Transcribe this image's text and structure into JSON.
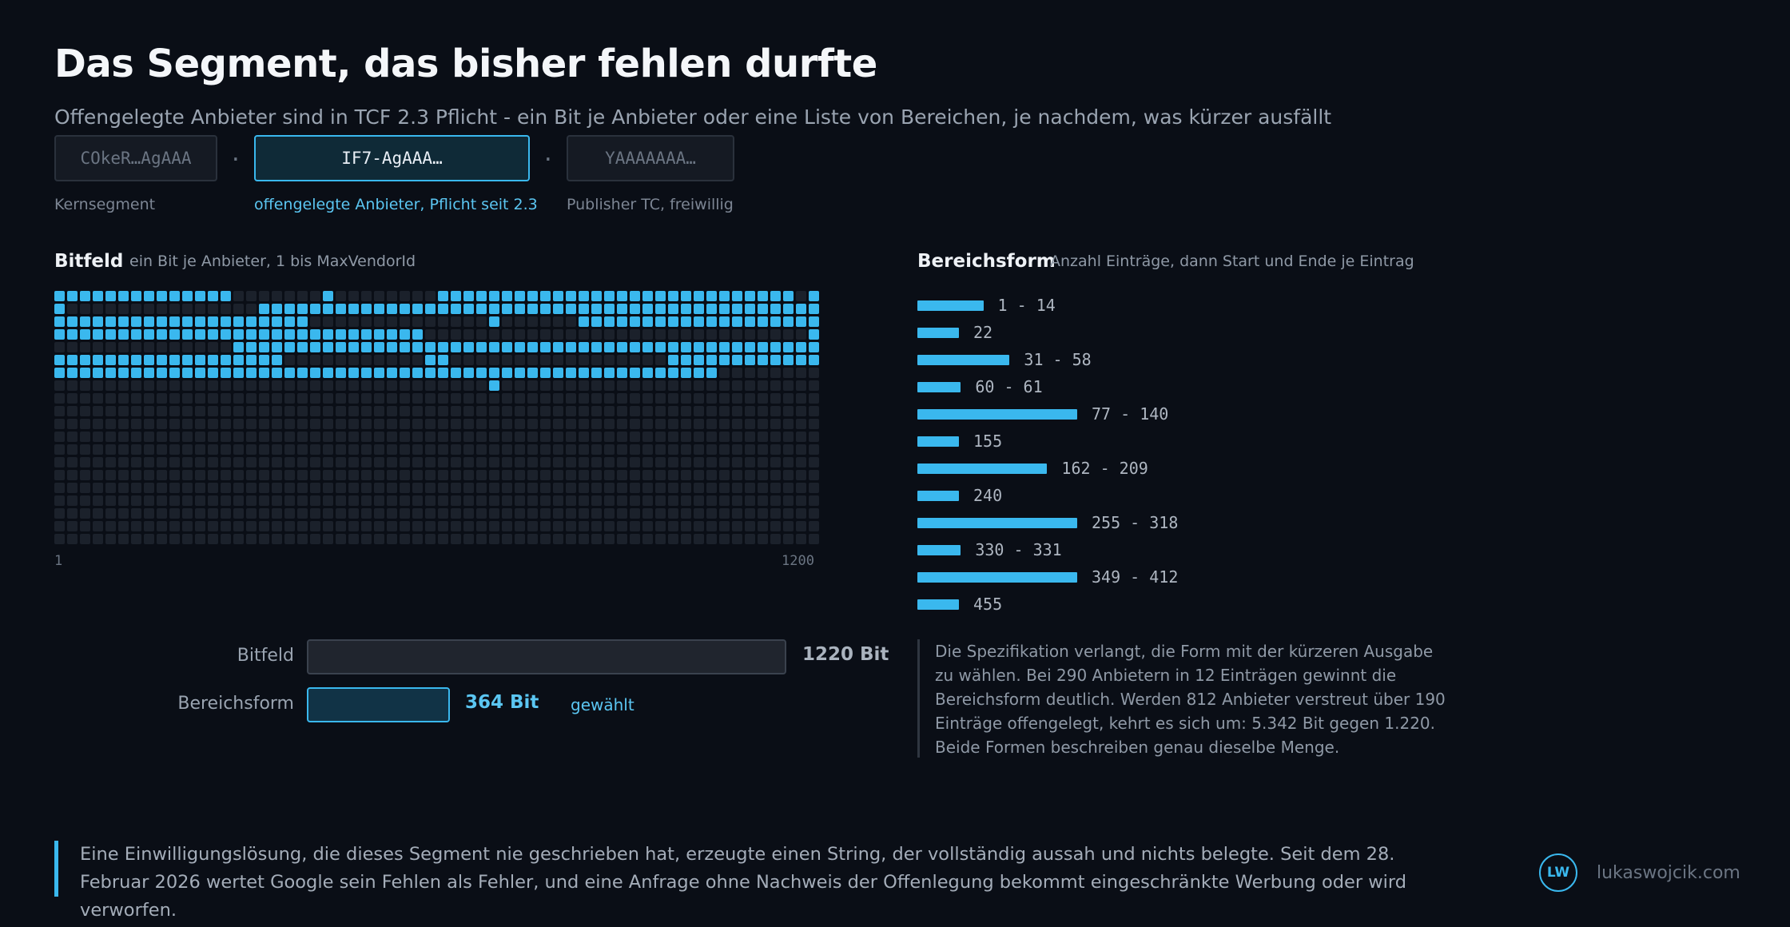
{
  "header": {
    "title": "Das Segment, das bisher fehlen durfte",
    "subtitle": "Offengelegte Anbieter sind in TCF 2.3 Pflicht - ein Bit je Anbieter oder eine Liste von Bereichen, je nachdem, was kürzer ausfällt"
  },
  "segments": [
    {
      "text": "COkeR…AgAAA",
      "label": "Kernsegment",
      "active": false
    },
    {
      "text": "IF7-AgAAA…",
      "label": "offengelegte Anbieter, Pflicht seit 2.3",
      "active": true
    },
    {
      "text": "YAAAAAAA…",
      "label": "Publisher TC, freiwillig",
      "active": false
    }
  ],
  "separator": ".",
  "bitfield": {
    "heading": "Bitfeld",
    "description": "ein Bit je Anbieter, 1 bis MaxVendorId",
    "axis_start": "1",
    "axis_end": "1200"
  },
  "ranges": {
    "heading": "Bereichsform",
    "description": "Anzahl Einträge, dann Start und Ende je Eintrag"
  },
  "chart_data": {
    "type": "bar",
    "categories": [
      "1 - 14",
      "22",
      "31 - 58",
      "60 - 61",
      "77 - 140",
      "155",
      "162 - 209",
      "240",
      "255 - 318",
      "330 - 331",
      "349 - 412",
      "455"
    ],
    "entries": [
      {
        "label": "1 - 14",
        "start": 1,
        "end": 14
      },
      {
        "label": "22",
        "start": 22,
        "end": 22
      },
      {
        "label": "31 - 58",
        "start": 31,
        "end": 58
      },
      {
        "label": "60 - 61",
        "start": 60,
        "end": 61
      },
      {
        "label": "77 - 140",
        "start": 77,
        "end": 140
      },
      {
        "label": "155",
        "start": 155,
        "end": 155
      },
      {
        "label": "162 - 209",
        "start": 162,
        "end": 209
      },
      {
        "label": "240",
        "start": 240,
        "end": 240
      },
      {
        "label": "255 - 318",
        "start": 255,
        "end": 318
      },
      {
        "label": "330 - 331",
        "start": 330,
        "end": 331
      },
      {
        "label": "349 - 412",
        "start": 349,
        "end": 412
      },
      {
        "label": "455",
        "start": 455,
        "end": 455
      }
    ]
  },
  "comparison": {
    "bitfeld_label": "Bitfeld",
    "bitfeld_value": "1220 Bit",
    "bitfeld_bits": 1220,
    "bereich_label": "Bereichsform",
    "bereich_value": "364 Bit",
    "bereich_bits": 364,
    "chosen": "gewählt"
  },
  "spec_note": "Die Spezifikation verlangt, die Form mit der kürzeren Ausgabe zu wählen. Bei 290 Anbietern in 12 Einträgen gewinnt die Bereichsform deutlich. Werden 812 Anbieter verstreut über 190 Einträge offengelegt, kehrt es sich um: 5.342 Bit gegen 1.220. Beide Formen beschreiben genau dieselbe Menge.",
  "footer": {
    "text": "Eine Einwilligungslösung, die dieses Segment nie geschrieben hat, erzeugte einen String, der vollständig aussah und nichts belegte. Seit dem 28. Februar 2026 wertet Google sein Fehlen als Fehler, und eine Anfrage ohne Nachweis der Offenlegung bekommt eingeschränkte Werbung oder wird verworfen.",
    "logo": "LW",
    "site": "lukaswojcik.com"
  },
  "colors": {
    "accent": "#3ab8ee",
    "background": "#0a0e16",
    "cell_off": "#1b212b"
  }
}
